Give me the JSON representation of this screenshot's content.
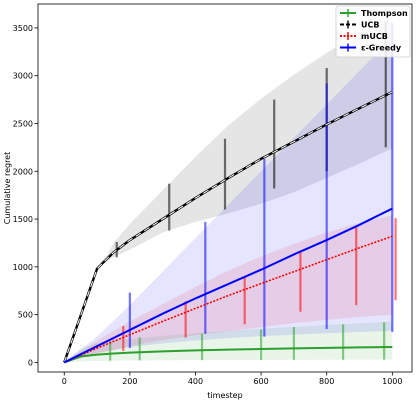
{
  "chart_data": {
    "type": "line",
    "title": "",
    "xlabel": "timestep",
    "ylabel": "Cumulative regret",
    "xlim": [
      -80,
      1060
    ],
    "ylim": [
      -100,
      3750
    ],
    "xticks": [
      0,
      200,
      400,
      600,
      800,
      1000
    ],
    "yticks": [
      0,
      500,
      1000,
      1500,
      2000,
      2500,
      3000,
      3500
    ],
    "xtick_labels": [
      "0",
      "200",
      "400",
      "600",
      "800",
      "1000"
    ],
    "ytick_labels": [
      "0",
      "500",
      "1000",
      "1500",
      "2000",
      "2500",
      "3000",
      "3500"
    ],
    "grid": false,
    "legend_position": "top-right",
    "series": [
      {
        "name": "Thompson",
        "color": "#2ca02c",
        "linestyle": "solid",
        "x": [
          0,
          50,
          100,
          150,
          200,
          300,
          400,
          500,
          600,
          700,
          800,
          900,
          1000
        ],
        "mean": [
          0,
          62,
          82,
          94,
          103,
          116,
          126,
          134,
          141,
          147,
          152,
          157,
          161
        ],
        "lower": [
          0,
          10,
          15,
          18,
          20,
          22,
          24,
          25,
          26,
          27,
          28,
          29,
          30
        ],
        "upper": [
          0,
          150,
          200,
          225,
          245,
          278,
          305,
          330,
          352,
          372,
          392,
          410,
          428
        ],
        "error_x": [
          140,
          230,
          420,
          600,
          700,
          850,
          975
        ],
        "error_lower": [
          18,
          21,
          24,
          26,
          27,
          28,
          29
        ],
        "error_upper": [
          220,
          262,
          300,
          345,
          370,
          398,
          420
        ]
      },
      {
        "name": "UCB",
        "color": "#000000",
        "linestyle": "dashed",
        "x": [
          0,
          100,
          120,
          150,
          200,
          300,
          400,
          500,
          600,
          700,
          800,
          900,
          1000
        ],
        "mean": [
          0,
          980,
          1050,
          1150,
          1280,
          1500,
          1720,
          1930,
          2130,
          2310,
          2490,
          2660,
          2830
        ],
        "lower": [
          0,
          980,
          1050,
          1100,
          1180,
          1360,
          1470,
          1560,
          1660,
          1780,
          1930,
          2080,
          2240
        ],
        "upper": [
          0,
          980,
          1050,
          1250,
          1450,
          1800,
          2150,
          2480,
          2760,
          3010,
          3240,
          3450,
          3650
        ],
        "error_x": [
          160,
          320,
          490,
          640,
          800,
          980
        ],
        "error_lower": [
          1100,
          1380,
          1600,
          1820,
          2000,
          2250
        ],
        "error_upper": [
          1260,
          1870,
          2340,
          2750,
          3080,
          3570
        ]
      },
      {
        "name": "mUCB",
        "color": "#ff0000",
        "linestyle": "dotted",
        "x": [
          0,
          100,
          200,
          300,
          400,
          500,
          600,
          700,
          800,
          900,
          1000
        ],
        "mean": [
          0,
          150,
          290,
          430,
          565,
          700,
          825,
          950,
          1075,
          1200,
          1320
        ],
        "lower": [
          0,
          90,
          170,
          235,
          285,
          325,
          370,
          410,
          445,
          475,
          500
        ],
        "upper": [
          0,
          230,
          430,
          610,
          790,
          960,
          1110,
          1240,
          1360,
          1460,
          1540
        ],
        "error_x": [
          180,
          370,
          550,
          720,
          890,
          1010
        ],
        "error_lower": [
          120,
          260,
          400,
          530,
          600,
          650
        ],
        "error_upper": [
          380,
          640,
          900,
          1150,
          1420,
          1510
        ]
      },
      {
        "name": "ε-Greedy",
        "color": "#0000ff",
        "linestyle": "solid",
        "x": [
          0,
          100,
          200,
          300,
          400,
          500,
          600,
          700,
          800,
          900,
          1000
        ],
        "mean": [
          0,
          170,
          340,
          510,
          670,
          820,
          970,
          1130,
          1280,
          1440,
          1610
        ],
        "lower": [
          0,
          100,
          160,
          200,
          230,
          255,
          275,
          290,
          305,
          318,
          330
        ],
        "upper": [
          0,
          270,
          600,
          950,
          1300,
          1650,
          2000,
          2350,
          2700,
          3050,
          3400
        ],
        "error_x": [
          200,
          430,
          610,
          800,
          1000
        ],
        "error_lower": [
          150,
          300,
          270,
          350,
          320
        ],
        "error_upper": [
          730,
          1470,
          2130,
          2920,
          3550
        ]
      }
    ]
  }
}
